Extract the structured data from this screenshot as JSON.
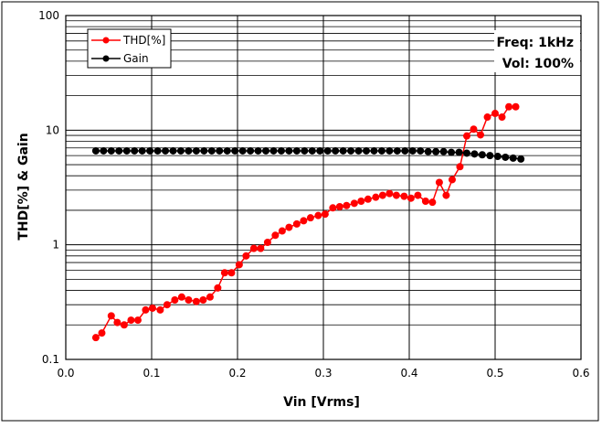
{
  "chart_data": {
    "type": "scatter",
    "xlabel": "Vin  [Vrms]",
    "ylabel": "THD[%] & Gain",
    "x_ticks": [
      "0.0",
      "0.1",
      "0.2",
      "0.3",
      "0.4",
      "0.5",
      "0.6"
    ],
    "y_ticks": [
      "0.1",
      "1",
      "10",
      "100"
    ],
    "xlim": [
      0,
      0.6
    ],
    "ylim": [
      0.1,
      100
    ],
    "yscale": "log",
    "grid": true,
    "legend_position": "top-left",
    "annotations": [
      "Freq: 1kHz",
      "Vol: 100%"
    ],
    "colors": {
      "thd": "#ff0000",
      "gain": "#000000"
    },
    "series": [
      {
        "name": "THD[%]",
        "x": [
          0.035,
          0.042,
          0.053,
          0.06,
          0.068,
          0.076,
          0.084,
          0.093,
          0.101,
          0.11,
          0.118,
          0.127,
          0.135,
          0.143,
          0.152,
          0.16,
          0.168,
          0.177,
          0.185,
          0.193,
          0.202,
          0.21,
          0.219,
          0.227,
          0.235,
          0.244,
          0.252,
          0.26,
          0.269,
          0.277,
          0.285,
          0.294,
          0.302,
          0.311,
          0.319,
          0.327,
          0.336,
          0.344,
          0.352,
          0.361,
          0.369,
          0.377,
          0.385,
          0.394,
          0.402,
          0.41,
          0.419,
          0.427,
          0.435,
          0.443,
          0.45,
          0.459,
          0.467,
          0.475,
          0.483,
          0.491,
          0.5,
          0.508,
          0.516,
          0.524
        ],
        "values": [
          0.155,
          0.17,
          0.24,
          0.21,
          0.2,
          0.22,
          0.22,
          0.27,
          0.28,
          0.27,
          0.3,
          0.33,
          0.35,
          0.33,
          0.32,
          0.33,
          0.35,
          0.42,
          0.57,
          0.57,
          0.67,
          0.8,
          0.93,
          0.93,
          1.05,
          1.21,
          1.32,
          1.42,
          1.52,
          1.62,
          1.72,
          1.8,
          1.85,
          2.1,
          2.15,
          2.2,
          2.3,
          2.4,
          2.5,
          2.6,
          2.7,
          2.8,
          2.7,
          2.65,
          2.55,
          2.7,
          2.4,
          2.35,
          3.5,
          2.7,
          3.7,
          4.8,
          8.9,
          10.2,
          9.1,
          13.0,
          14.0,
          13.0,
          16.0,
          16.0
        ]
      },
      {
        "name": "Gain",
        "x": [
          0.035,
          0.044,
          0.053,
          0.062,
          0.071,
          0.08,
          0.089,
          0.098,
          0.107,
          0.116,
          0.125,
          0.134,
          0.143,
          0.152,
          0.161,
          0.17,
          0.179,
          0.188,
          0.197,
          0.206,
          0.215,
          0.224,
          0.233,
          0.242,
          0.251,
          0.26,
          0.269,
          0.278,
          0.287,
          0.296,
          0.305,
          0.314,
          0.323,
          0.332,
          0.341,
          0.35,
          0.359,
          0.368,
          0.377,
          0.386,
          0.395,
          0.404,
          0.413,
          0.422,
          0.431,
          0.44,
          0.449,
          0.458,
          0.467,
          0.476,
          0.485,
          0.494,
          0.503,
          0.512,
          0.521,
          0.53
        ],
        "values": [
          6.6,
          6.6,
          6.6,
          6.6,
          6.6,
          6.6,
          6.6,
          6.6,
          6.6,
          6.6,
          6.6,
          6.6,
          6.6,
          6.6,
          6.6,
          6.6,
          6.6,
          6.6,
          6.6,
          6.6,
          6.6,
          6.6,
          6.6,
          6.6,
          6.6,
          6.6,
          6.6,
          6.6,
          6.6,
          6.6,
          6.6,
          6.6,
          6.6,
          6.6,
          6.6,
          6.6,
          6.6,
          6.6,
          6.6,
          6.6,
          6.6,
          6.6,
          6.6,
          6.5,
          6.5,
          6.5,
          6.4,
          6.4,
          6.3,
          6.2,
          6.1,
          6.0,
          5.9,
          5.8,
          5.7,
          5.6
        ]
      }
    ]
  }
}
